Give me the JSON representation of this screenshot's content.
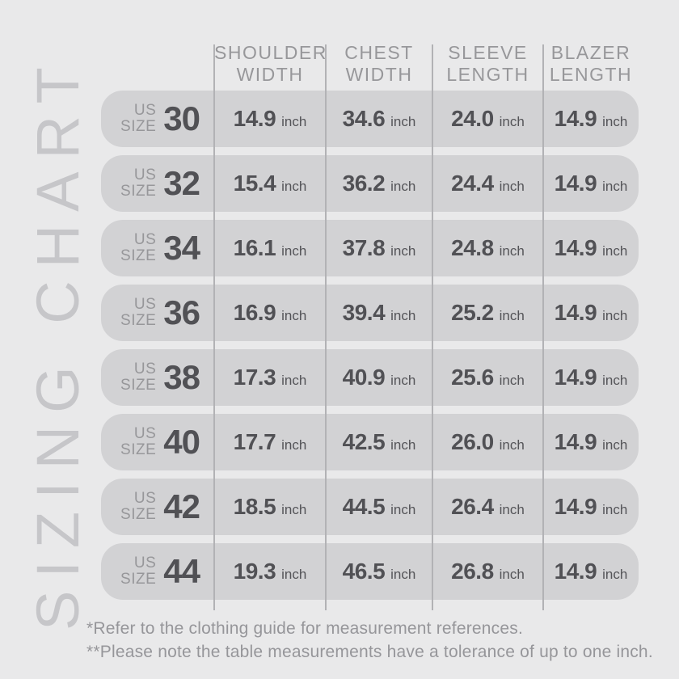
{
  "title": {
    "vertical_label": "SIZING CHART"
  },
  "colors": {
    "page_background": "#e9e9ea",
    "row_pill_background": "#d2d2d4",
    "header_text": "#97979a",
    "value_text": "#515155",
    "watermark_text": "#c6c6c9",
    "divider_line": "#b2b2b5"
  },
  "table": {
    "size_label": {
      "line1": "US",
      "line2": "SIZE"
    },
    "unit": "inch",
    "columns": [
      {
        "line1": "SHOULDER",
        "line2": "WIDTH"
      },
      {
        "line1": "CHEST",
        "line2": "WIDTH"
      },
      {
        "line1": "SLEEVE",
        "line2": "LENGTH"
      },
      {
        "line1": "BLAZER",
        "line2": "LENGTH"
      }
    ],
    "rows": [
      {
        "size": "30",
        "shoulder": "14.9",
        "chest": "34.6",
        "sleeve": "24.0",
        "blazer": "14.9"
      },
      {
        "size": "32",
        "shoulder": "15.4",
        "chest": "36.2",
        "sleeve": "24.4",
        "blazer": "14.9"
      },
      {
        "size": "34",
        "shoulder": "16.1",
        "chest": "37.8",
        "sleeve": "24.8",
        "blazer": "14.9"
      },
      {
        "size": "36",
        "shoulder": "16.9",
        "chest": "39.4",
        "sleeve": "25.2",
        "blazer": "14.9"
      },
      {
        "size": "38",
        "shoulder": "17.3",
        "chest": "40.9",
        "sleeve": "25.6",
        "blazer": "14.9"
      },
      {
        "size": "40",
        "shoulder": "17.7",
        "chest": "42.5",
        "sleeve": "26.0",
        "blazer": "14.9"
      },
      {
        "size": "42",
        "shoulder": "18.5",
        "chest": "44.5",
        "sleeve": "26.4",
        "blazer": "14.9"
      },
      {
        "size": "44",
        "shoulder": "19.3",
        "chest": "46.5",
        "sleeve": "26.8",
        "blazer": "14.9"
      }
    ]
  },
  "footnotes": {
    "line1": "*Refer to the clothing guide for measurement references.",
    "line2": "**Please note the table measurements have a tolerance of up to one inch."
  },
  "chart_data": {
    "type": "table",
    "title": "SIZING CHART",
    "columns": [
      "US SIZE",
      "SHOULDER WIDTH (inch)",
      "CHEST WIDTH (inch)",
      "SLEEVE LENGTH (inch)",
      "BLAZER LENGTH (inch)"
    ],
    "rows": [
      [
        30,
        14.9,
        34.6,
        24.0,
        14.9
      ],
      [
        32,
        15.4,
        36.2,
        24.4,
        14.9
      ],
      [
        34,
        16.1,
        37.8,
        24.8,
        14.9
      ],
      [
        36,
        16.9,
        39.4,
        25.2,
        14.9
      ],
      [
        38,
        17.3,
        40.9,
        25.6,
        14.9
      ],
      [
        40,
        17.7,
        42.5,
        26.0,
        14.9
      ],
      [
        42,
        18.5,
        44.5,
        26.4,
        14.9
      ],
      [
        44,
        19.3,
        46.5,
        26.8,
        14.9
      ]
    ]
  }
}
